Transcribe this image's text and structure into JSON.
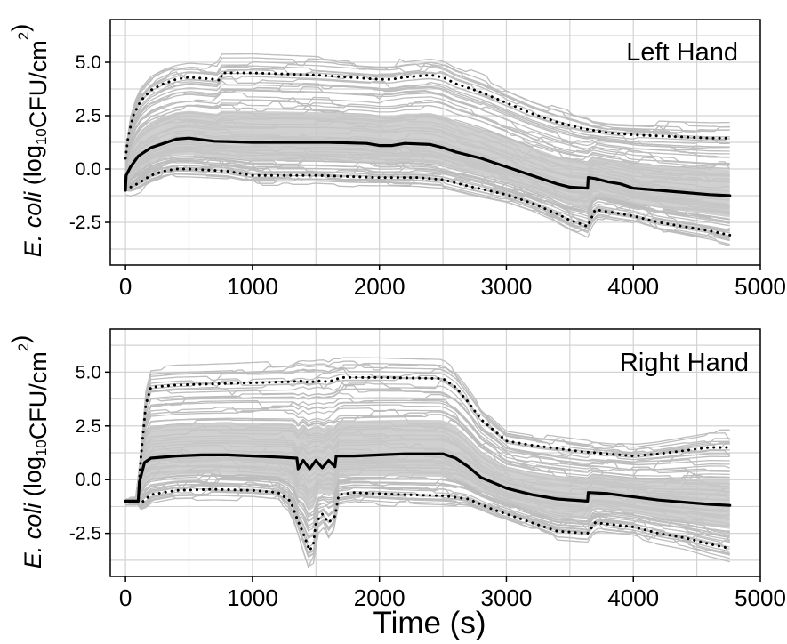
{
  "chart_data": [
    {
      "type": "line",
      "title": "Left Hand",
      "xlabel": "",
      "ylabel": {
        "italic": "E. coli",
        "prefix": "(log",
        "sub": "10",
        "mid": "CFU/cm",
        "sup": "2",
        "suffix": ")"
      },
      "xlim": [
        -120,
        5000
      ],
      "ylim": [
        -4.5,
        7.0
      ],
      "xticks": [
        "0",
        "1000",
        "2000",
        "3000",
        "4000",
        "5000"
      ],
      "xtick_values": [
        0,
        1000,
        2000,
        3000,
        4000,
        5000
      ],
      "yticks": [
        "5.0",
        "2.5",
        "0.0",
        "-2.5"
      ],
      "ytick_values": [
        5.0,
        2.5,
        0.0,
        -2.5
      ],
      "grid": true,
      "series": [
        {
          "role": "median",
          "style": "solid",
          "color": "#000000",
          "x": [
            0,
            5,
            40,
            100,
            200,
            300,
            400,
            500,
            700,
            1000,
            1300,
            1600,
            1900,
            2000,
            2100,
            2200,
            2400,
            2500,
            2600,
            2800,
            3000,
            3200,
            3400,
            3500,
            3640,
            3645,
            3700,
            3800,
            3900,
            4000,
            4200,
            4400,
            4600,
            4760
          ],
          "values": [
            -0.9,
            -0.3,
            0.1,
            0.6,
            1.0,
            1.2,
            1.4,
            1.45,
            1.3,
            1.25,
            1.25,
            1.25,
            1.2,
            1.1,
            1.1,
            1.2,
            1.15,
            1.0,
            0.8,
            0.5,
            0.1,
            -0.3,
            -0.7,
            -0.85,
            -0.9,
            -0.4,
            -0.45,
            -0.6,
            -0.7,
            -0.9,
            -1.0,
            -1.1,
            -1.2,
            -1.25
          ]
        },
        {
          "role": "upper-bound",
          "style": "dotted",
          "color": "#000000",
          "x": [
            0,
            20,
            60,
            120,
            200,
            300,
            400,
            500,
            700,
            750,
            760,
            800,
            1000,
            1500,
            2000,
            2100,
            2200,
            2400,
            2500,
            2600,
            2800,
            3000,
            3200,
            3400,
            3600,
            3800,
            4000,
            4200,
            4400,
            4600,
            4760
          ],
          "values": [
            0.5,
            1.5,
            2.5,
            3.2,
            3.7,
            4.0,
            4.2,
            4.3,
            4.2,
            4.15,
            4.5,
            4.5,
            4.5,
            4.4,
            4.2,
            4.2,
            4.3,
            4.4,
            4.3,
            4.0,
            3.6,
            3.1,
            2.6,
            2.2,
            1.9,
            1.7,
            1.6,
            1.55,
            1.5,
            1.45,
            1.45
          ]
        },
        {
          "role": "lower-bound",
          "style": "dotted",
          "color": "#000000",
          "x": [
            0,
            20,
            60,
            120,
            200,
            300,
            400,
            500,
            800,
            1000,
            1500,
            2000,
            2300,
            2500,
            2700,
            3000,
            3200,
            3400,
            3500,
            3600,
            3640,
            3700,
            3800,
            4000,
            4200,
            4400,
            4600,
            4760
          ],
          "values": [
            -1.0,
            -0.9,
            -0.8,
            -0.6,
            -0.3,
            -0.1,
            0.0,
            0.0,
            -0.1,
            -0.3,
            -0.3,
            -0.4,
            -0.4,
            -0.5,
            -0.8,
            -1.2,
            -1.6,
            -2.1,
            -2.4,
            -2.6,
            -2.7,
            -1.9,
            -2.0,
            -2.2,
            -2.5,
            -2.7,
            -2.9,
            -3.1
          ]
        }
      ]
    },
    {
      "type": "line",
      "title": "Right Hand",
      "xlabel": "Time (s)",
      "ylabel": {
        "italic": "E. coli",
        "prefix": "(log",
        "sub": "10",
        "mid": "CFU/cm",
        "sup": "2",
        "suffix": ")"
      },
      "xlim": [
        -120,
        5000
      ],
      "ylim": [
        -4.5,
        7.0
      ],
      "xticks": [
        "0",
        "1000",
        "2000",
        "3000",
        "4000",
        "5000"
      ],
      "xtick_values": [
        0,
        1000,
        2000,
        3000,
        4000,
        5000
      ],
      "yticks": [
        "5.0",
        "2.5",
        "0.0",
        "-2.5"
      ],
      "ytick_values": [
        5.0,
        2.5,
        0.0,
        -2.5
      ],
      "grid": true,
      "series": [
        {
          "role": "median",
          "style": "solid",
          "color": "#000000",
          "x": [
            0,
            100,
            110,
            150,
            200,
            400,
            600,
            800,
            1000,
            1200,
            1350,
            1360,
            1400,
            1450,
            1500,
            1550,
            1600,
            1650,
            1660,
            1800,
            2000,
            2200,
            2500,
            2600,
            2700,
            2800,
            3000,
            3200,
            3400,
            3640,
            3645,
            3800,
            4000,
            4200,
            4400,
            4600,
            4760
          ],
          "values": [
            -1.0,
            -1.0,
            -0.1,
            0.8,
            1.0,
            1.1,
            1.15,
            1.15,
            1.1,
            1.05,
            1.0,
            0.5,
            0.9,
            0.5,
            0.9,
            0.55,
            0.9,
            0.6,
            1.1,
            1.1,
            1.15,
            1.2,
            1.2,
            1.0,
            0.6,
            0.1,
            -0.4,
            -0.7,
            -0.9,
            -1.0,
            -0.6,
            -0.65,
            -0.8,
            -0.95,
            -1.05,
            -1.15,
            -1.2
          ]
        },
        {
          "role": "upper-bound",
          "style": "dotted",
          "color": "#000000",
          "x": [
            0,
            100,
            120,
            160,
            200,
            400,
            700,
            1000,
            1300,
            1400,
            1450,
            1500,
            1600,
            1700,
            2000,
            2500,
            2600,
            2700,
            2800,
            2900,
            3000,
            3200,
            3600,
            3800,
            4000,
            4200,
            4400,
            4600,
            4760
          ],
          "values": [
            -1.0,
            -1.0,
            1.0,
            3.5,
            4.3,
            4.4,
            4.45,
            4.5,
            4.55,
            4.6,
            4.5,
            4.6,
            4.55,
            4.75,
            4.75,
            4.7,
            4.3,
            3.6,
            2.8,
            2.3,
            1.8,
            1.6,
            1.3,
            1.2,
            1.1,
            1.2,
            1.35,
            1.5,
            1.5
          ]
        },
        {
          "role": "lower-bound",
          "style": "dotted",
          "color": "#000000",
          "x": [
            0,
            100,
            120,
            160,
            200,
            400,
            700,
            1000,
            1200,
            1300,
            1350,
            1400,
            1450,
            1480,
            1500,
            1550,
            1600,
            1650,
            1680,
            1800,
            2000,
            2200,
            2500,
            2700,
            2900,
            3000,
            3200,
            3400,
            3640,
            3700,
            4000,
            4200,
            4400,
            4600,
            4760
          ],
          "values": [
            -1.0,
            -1.0,
            -1.1,
            -0.9,
            -0.7,
            -0.5,
            -0.45,
            -0.5,
            -0.6,
            -1.0,
            -1.8,
            -2.5,
            -3.3,
            -3.0,
            -2.0,
            -1.6,
            -2.0,
            -1.7,
            -0.7,
            -0.6,
            -0.65,
            -0.7,
            -0.75,
            -0.9,
            -1.4,
            -1.6,
            -2.0,
            -2.4,
            -2.5,
            -2.0,
            -2.2,
            -2.5,
            -2.7,
            -3.0,
            -3.2
          ]
        }
      ]
    }
  ]
}
